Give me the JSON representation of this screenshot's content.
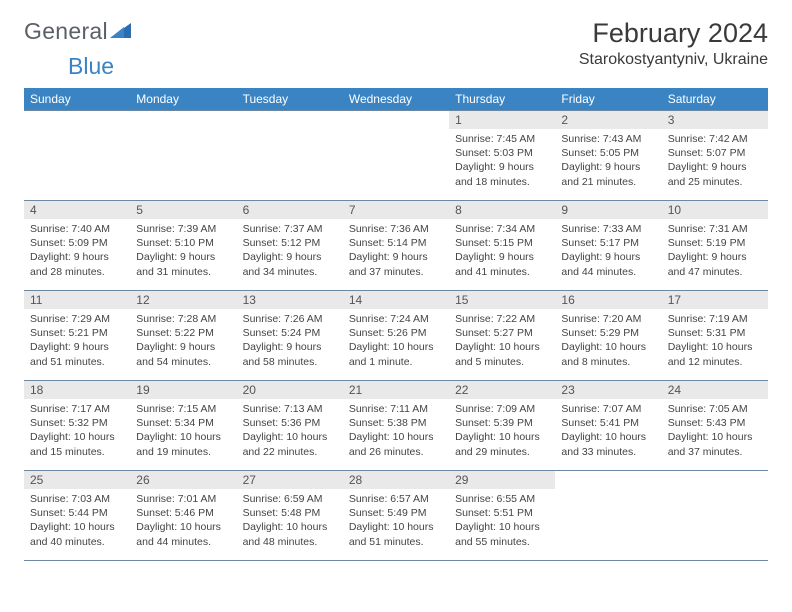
{
  "brand": {
    "word1": "General",
    "word2": "Blue",
    "color1": "#5b6068",
    "color2": "#3b84c4"
  },
  "title": "February 2024",
  "location": "Starokostyantyniv, Ukraine",
  "header_bg": "#3b84c4",
  "daynum_bg": "#e9e9e9",
  "border_color": "#6d88a2",
  "days_of_week": [
    "Sunday",
    "Monday",
    "Tuesday",
    "Wednesday",
    "Thursday",
    "Friday",
    "Saturday"
  ],
  "weeks": [
    [
      {
        "n": "",
        "lines": []
      },
      {
        "n": "",
        "lines": []
      },
      {
        "n": "",
        "lines": []
      },
      {
        "n": "",
        "lines": []
      },
      {
        "n": "1",
        "lines": [
          "Sunrise: 7:45 AM",
          "Sunset: 5:03 PM",
          "Daylight: 9 hours",
          "and 18 minutes."
        ]
      },
      {
        "n": "2",
        "lines": [
          "Sunrise: 7:43 AM",
          "Sunset: 5:05 PM",
          "Daylight: 9 hours",
          "and 21 minutes."
        ]
      },
      {
        "n": "3",
        "lines": [
          "Sunrise: 7:42 AM",
          "Sunset: 5:07 PM",
          "Daylight: 9 hours",
          "and 25 minutes."
        ]
      }
    ],
    [
      {
        "n": "4",
        "lines": [
          "Sunrise: 7:40 AM",
          "Sunset: 5:09 PM",
          "Daylight: 9 hours",
          "and 28 minutes."
        ]
      },
      {
        "n": "5",
        "lines": [
          "Sunrise: 7:39 AM",
          "Sunset: 5:10 PM",
          "Daylight: 9 hours",
          "and 31 minutes."
        ]
      },
      {
        "n": "6",
        "lines": [
          "Sunrise: 7:37 AM",
          "Sunset: 5:12 PM",
          "Daylight: 9 hours",
          "and 34 minutes."
        ]
      },
      {
        "n": "7",
        "lines": [
          "Sunrise: 7:36 AM",
          "Sunset: 5:14 PM",
          "Daylight: 9 hours",
          "and 37 minutes."
        ]
      },
      {
        "n": "8",
        "lines": [
          "Sunrise: 7:34 AM",
          "Sunset: 5:15 PM",
          "Daylight: 9 hours",
          "and 41 minutes."
        ]
      },
      {
        "n": "9",
        "lines": [
          "Sunrise: 7:33 AM",
          "Sunset: 5:17 PM",
          "Daylight: 9 hours",
          "and 44 minutes."
        ]
      },
      {
        "n": "10",
        "lines": [
          "Sunrise: 7:31 AM",
          "Sunset: 5:19 PM",
          "Daylight: 9 hours",
          "and 47 minutes."
        ]
      }
    ],
    [
      {
        "n": "11",
        "lines": [
          "Sunrise: 7:29 AM",
          "Sunset: 5:21 PM",
          "Daylight: 9 hours",
          "and 51 minutes."
        ]
      },
      {
        "n": "12",
        "lines": [
          "Sunrise: 7:28 AM",
          "Sunset: 5:22 PM",
          "Daylight: 9 hours",
          "and 54 minutes."
        ]
      },
      {
        "n": "13",
        "lines": [
          "Sunrise: 7:26 AM",
          "Sunset: 5:24 PM",
          "Daylight: 9 hours",
          "and 58 minutes."
        ]
      },
      {
        "n": "14",
        "lines": [
          "Sunrise: 7:24 AM",
          "Sunset: 5:26 PM",
          "Daylight: 10 hours",
          "and 1 minute."
        ]
      },
      {
        "n": "15",
        "lines": [
          "Sunrise: 7:22 AM",
          "Sunset: 5:27 PM",
          "Daylight: 10 hours",
          "and 5 minutes."
        ]
      },
      {
        "n": "16",
        "lines": [
          "Sunrise: 7:20 AM",
          "Sunset: 5:29 PM",
          "Daylight: 10 hours",
          "and 8 minutes."
        ]
      },
      {
        "n": "17",
        "lines": [
          "Sunrise: 7:19 AM",
          "Sunset: 5:31 PM",
          "Daylight: 10 hours",
          "and 12 minutes."
        ]
      }
    ],
    [
      {
        "n": "18",
        "lines": [
          "Sunrise: 7:17 AM",
          "Sunset: 5:32 PM",
          "Daylight: 10 hours",
          "and 15 minutes."
        ]
      },
      {
        "n": "19",
        "lines": [
          "Sunrise: 7:15 AM",
          "Sunset: 5:34 PM",
          "Daylight: 10 hours",
          "and 19 minutes."
        ]
      },
      {
        "n": "20",
        "lines": [
          "Sunrise: 7:13 AM",
          "Sunset: 5:36 PM",
          "Daylight: 10 hours",
          "and 22 minutes."
        ]
      },
      {
        "n": "21",
        "lines": [
          "Sunrise: 7:11 AM",
          "Sunset: 5:38 PM",
          "Daylight: 10 hours",
          "and 26 minutes."
        ]
      },
      {
        "n": "22",
        "lines": [
          "Sunrise: 7:09 AM",
          "Sunset: 5:39 PM",
          "Daylight: 10 hours",
          "and 29 minutes."
        ]
      },
      {
        "n": "23",
        "lines": [
          "Sunrise: 7:07 AM",
          "Sunset: 5:41 PM",
          "Daylight: 10 hours",
          "and 33 minutes."
        ]
      },
      {
        "n": "24",
        "lines": [
          "Sunrise: 7:05 AM",
          "Sunset: 5:43 PM",
          "Daylight: 10 hours",
          "and 37 minutes."
        ]
      }
    ],
    [
      {
        "n": "25",
        "lines": [
          "Sunrise: 7:03 AM",
          "Sunset: 5:44 PM",
          "Daylight: 10 hours",
          "and 40 minutes."
        ]
      },
      {
        "n": "26",
        "lines": [
          "Sunrise: 7:01 AM",
          "Sunset: 5:46 PM",
          "Daylight: 10 hours",
          "and 44 minutes."
        ]
      },
      {
        "n": "27",
        "lines": [
          "Sunrise: 6:59 AM",
          "Sunset: 5:48 PM",
          "Daylight: 10 hours",
          "and 48 minutes."
        ]
      },
      {
        "n": "28",
        "lines": [
          "Sunrise: 6:57 AM",
          "Sunset: 5:49 PM",
          "Daylight: 10 hours",
          "and 51 minutes."
        ]
      },
      {
        "n": "29",
        "lines": [
          "Sunrise: 6:55 AM",
          "Sunset: 5:51 PM",
          "Daylight: 10 hours",
          "and 55 minutes."
        ]
      },
      {
        "n": "",
        "lines": []
      },
      {
        "n": "",
        "lines": []
      }
    ]
  ]
}
